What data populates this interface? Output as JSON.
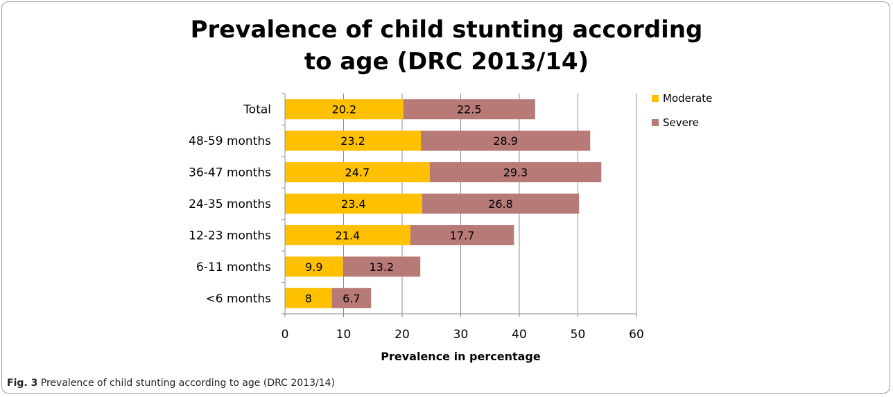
{
  "figure": {
    "label": "Fig. 3",
    "caption": "Prevalence of child stunting according to age (DRC 2013/14)"
  },
  "chart_data": {
    "type": "bar",
    "orientation": "horizontal",
    "stacked": true,
    "title_line1": "Prevalence of child stunting according",
    "title_line2": "to age (DRC 2013/14)",
    "xlabel": "Prevalence in percentage",
    "ylabel": "",
    "xlim": [
      0,
      60
    ],
    "xticks": [
      0,
      10,
      20,
      30,
      40,
      50,
      60
    ],
    "grid": "vertical",
    "legend_position": "top-right",
    "categories": [
      "Total",
      "48-59 months",
      "36-47 months",
      "24-35 months",
      "12-23 months",
      "6-11 months",
      "<6 months"
    ],
    "series": [
      {
        "name": "Moderate",
        "color": "#FFC000",
        "values": [
          20.2,
          23.2,
          24.7,
          23.4,
          21.4,
          9.9,
          8
        ]
      },
      {
        "name": "Severe",
        "color": "#B77A76",
        "values": [
          22.5,
          28.9,
          29.3,
          26.8,
          17.7,
          13.2,
          6.7
        ]
      }
    ]
  }
}
